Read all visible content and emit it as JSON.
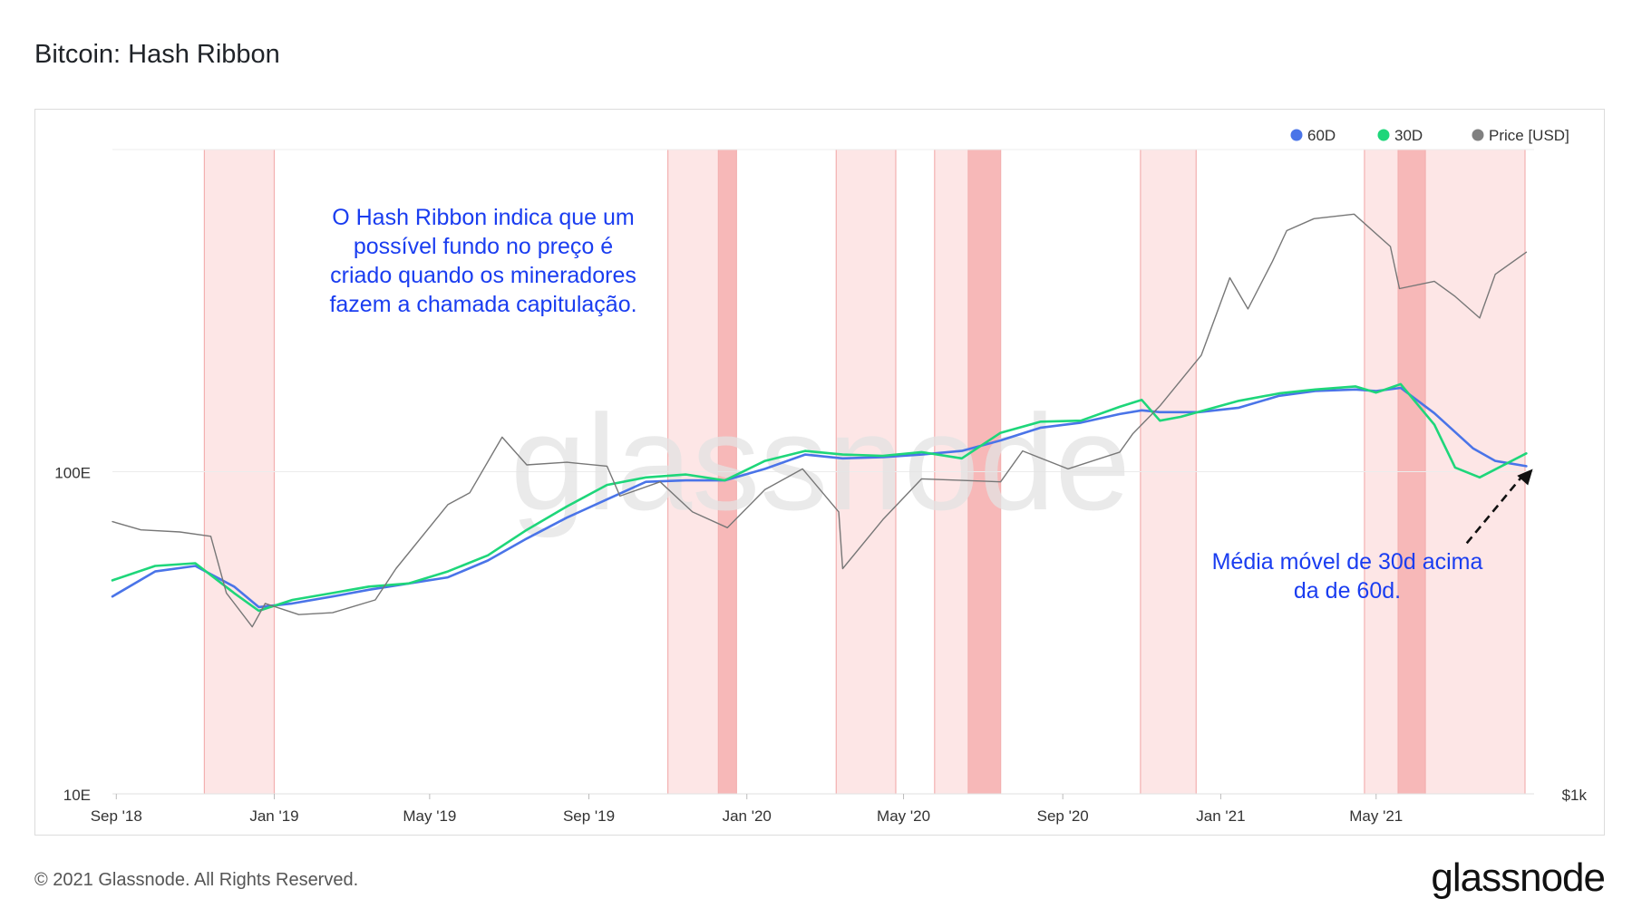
{
  "page": {
    "title": "Bitcoin: Hash Ribbon",
    "footer": "© 2021 Glassnode. All Rights Reserved.",
    "brand": "glassnode"
  },
  "chart_data": {
    "type": "line",
    "title": "Bitcoin: Hash Ribbon",
    "watermark": "glassnode",
    "x_ticks": [
      "Sep '18",
      "Jan '19",
      "May '19",
      "Sep '19",
      "Jan '20",
      "May '20",
      "Sep '20",
      "Jan '21",
      "May '21"
    ],
    "x_tick_dates": [
      "2018-09-01",
      "2019-01-01",
      "2019-05-01",
      "2019-09-01",
      "2020-01-01",
      "2020-05-01",
      "2020-09-01",
      "2021-01-01",
      "2021-05-01"
    ],
    "x_range": [
      "2018-08-29",
      "2021-08-31"
    ],
    "y_left": {
      "label": "",
      "scale": "log",
      "ticks": [
        "100E",
        "10E"
      ],
      "tick_values": [
        100,
        10
      ],
      "range": [
        10,
        1000
      ]
    },
    "y_right": {
      "label": "",
      "scale": "log",
      "ticks": [
        "$1k"
      ],
      "tick_values": [
        1000
      ],
      "range": [
        1000,
        100000
      ]
    },
    "legend": {
      "placement": "top-right",
      "entries": [
        {
          "name": "60D",
          "color": "#4a74e8"
        },
        {
          "name": "30D",
          "color": "#1ed67a"
        },
        {
          "name": "Price [USD]",
          "color": "#808080"
        }
      ]
    },
    "series": [
      {
        "name": "60D",
        "axis": "left",
        "color": "#4a74e8",
        "x": [
          "2018-08-29",
          "2018-10-01",
          "2018-11-01",
          "2018-12-01",
          "2018-12-20",
          "2019-01-15",
          "2019-02-15",
          "2019-03-15",
          "2019-04-15",
          "2019-05-15",
          "2019-06-15",
          "2019-07-15",
          "2019-08-15",
          "2019-09-15",
          "2019-10-15",
          "2019-11-15",
          "2019-12-15",
          "2020-01-15",
          "2020-02-15",
          "2020-03-15",
          "2020-04-15",
          "2020-05-15",
          "2020-06-15",
          "2020-07-15",
          "2020-08-15",
          "2020-09-15",
          "2020-10-15",
          "2020-11-01",
          "2020-11-15",
          "2020-12-15",
          "2021-01-15",
          "2021-02-15",
          "2021-03-15",
          "2021-04-15",
          "2021-05-01",
          "2021-05-20",
          "2021-06-15",
          "2021-07-15",
          "2021-08-01",
          "2021-08-25"
        ],
        "values": [
          41,
          49,
          51,
          44,
          38,
          39,
          41,
          43,
          45,
          47,
          53,
          62,
          72,
          82,
          93,
          94,
          94,
          102,
          113,
          110,
          111,
          113,
          116,
          125,
          137,
          142,
          151,
          155,
          153,
          153,
          158,
          172,
          178,
          180,
          178,
          182,
          152,
          118,
          108,
          104
        ]
      },
      {
        "name": "30D",
        "axis": "left",
        "color": "#1ed67a",
        "x": [
          "2018-08-29",
          "2018-10-01",
          "2018-11-01",
          "2018-12-01",
          "2018-12-20",
          "2019-01-15",
          "2019-02-15",
          "2019-03-15",
          "2019-04-15",
          "2019-05-15",
          "2019-06-15",
          "2019-07-15",
          "2019-08-15",
          "2019-09-15",
          "2019-10-15",
          "2019-11-15",
          "2019-12-15",
          "2020-01-15",
          "2020-02-15",
          "2020-03-15",
          "2020-04-15",
          "2020-05-15",
          "2020-06-15",
          "2020-07-15",
          "2020-08-15",
          "2020-09-15",
          "2020-10-15",
          "2020-11-01",
          "2020-11-15",
          "2020-12-01",
          "2021-01-15",
          "2021-02-15",
          "2021-03-15",
          "2021-04-15",
          "2021-05-01",
          "2021-05-20",
          "2021-06-15",
          "2021-07-01",
          "2021-07-20",
          "2021-08-25"
        ],
        "values": [
          46,
          51,
          52,
          42,
          37,
          40,
          42,
          44,
          45,
          49,
          55,
          66,
          78,
          91,
          96,
          98,
          94,
          108,
          116,
          113,
          112,
          115,
          110,
          132,
          143,
          144,
          159,
          167,
          144,
          148,
          166,
          175,
          180,
          184,
          176,
          187,
          140,
          103,
          96,
          114
        ]
      },
      {
        "name": "Price [USD]",
        "axis": "right",
        "color": "#777777",
        "x": [
          "2018-08-29",
          "2018-09-20",
          "2018-10-20",
          "2018-11-13",
          "2018-11-25",
          "2018-12-15",
          "2018-12-25",
          "2019-01-20",
          "2019-02-15",
          "2019-03-20",
          "2019-04-05",
          "2019-05-15",
          "2019-06-01",
          "2019-06-26",
          "2019-07-15",
          "2019-08-15",
          "2019-09-15",
          "2019-09-25",
          "2019-10-26",
          "2019-11-20",
          "2019-12-17",
          "2020-01-15",
          "2020-02-13",
          "2020-03-12",
          "2020-03-15",
          "2020-04-15",
          "2020-05-15",
          "2020-06-15",
          "2020-07-15",
          "2020-08-01",
          "2020-09-05",
          "2020-10-15",
          "2020-10-25",
          "2020-11-15",
          "2020-12-17",
          "2021-01-08",
          "2021-01-22",
          "2021-02-10",
          "2021-02-21",
          "2021-03-14",
          "2021-04-14",
          "2021-05-12",
          "2021-05-19",
          "2021-06-15",
          "2021-07-01",
          "2021-07-20",
          "2021-08-01",
          "2021-08-25"
        ],
        "values": [
          7000,
          6600,
          6500,
          6300,
          4200,
          3300,
          3900,
          3600,
          3650,
          4000,
          5000,
          7900,
          8600,
          12800,
          10500,
          10700,
          10400,
          8400,
          9300,
          7500,
          6700,
          8800,
          10200,
          7500,
          5000,
          7100,
          9500,
          9400,
          9300,
          11600,
          10200,
          11500,
          13100,
          16000,
          23000,
          40000,
          32000,
          45000,
          56000,
          61000,
          63000,
          50000,
          37000,
          39000,
          35000,
          30000,
          41000,
          48000
        ]
      }
    ],
    "shaded_regions": [
      {
        "start": "2018-11-08",
        "end": "2019-01-01",
        "intensity": "light"
      },
      {
        "start": "2019-11-01",
        "end": "2019-12-10",
        "intensity": "light"
      },
      {
        "start": "2019-12-10",
        "end": "2019-12-24",
        "intensity": "dark"
      },
      {
        "start": "2020-03-10",
        "end": "2020-04-25",
        "intensity": "light"
      },
      {
        "start": "2020-05-25",
        "end": "2020-06-20",
        "intensity": "light"
      },
      {
        "start": "2020-06-20",
        "end": "2020-07-15",
        "intensity": "dark"
      },
      {
        "start": "2020-10-31",
        "end": "2020-12-13",
        "intensity": "light"
      },
      {
        "start": "2021-04-22",
        "end": "2021-05-18",
        "intensity": "light"
      },
      {
        "start": "2021-05-18",
        "end": "2021-06-08",
        "intensity": "dark"
      },
      {
        "start": "2021-06-08",
        "end": "2021-08-24",
        "intensity": "light"
      }
    ],
    "region_colors": {
      "light": "#fde6e6",
      "dark": "#f7b8b8",
      "edge": "#f3b0b0"
    },
    "annotations": [
      {
        "lines": [
          "O Hash Ribbon indica que um",
          "possível fundo no preço é",
          "criado quando os mineradores",
          "fazem a chamada capitulação."
        ],
        "color": "#1a3df0"
      },
      {
        "lines": [
          "Média móvel de 30d acima",
          "da de 60d."
        ],
        "color": "#1a3df0"
      }
    ],
    "arrow": {
      "style": "dashed",
      "color": "#111111",
      "direction": "up-right",
      "from": {
        "x": "2021-07-10",
        "y": 60
      },
      "to": {
        "x": "2021-08-30",
        "y": 102
      }
    }
  }
}
